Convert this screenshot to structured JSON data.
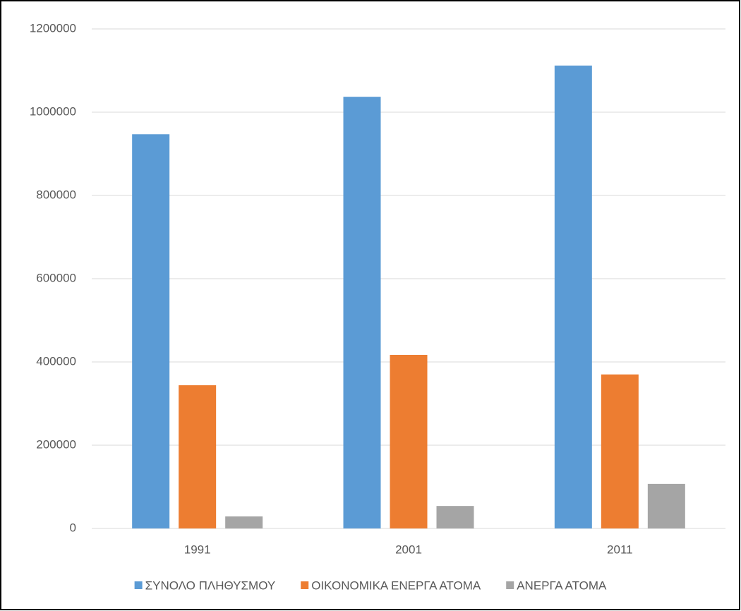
{
  "chart_data": {
    "type": "bar",
    "categories": [
      "1991",
      "2001",
      "2011"
    ],
    "series": [
      {
        "name": "ΣΥΝΟΛΟ ΠΛΗΘΥΣΜΟΥ",
        "color": "#5b9bd5",
        "values": [
          947000,
          1037000,
          1112000
        ]
      },
      {
        "name": "ΟΙΚΟΝΟΜΙΚΑ ΕΝΕΡΓΑ ΑΤΟΜΑ",
        "color": "#ed7d31",
        "values": [
          344000,
          417000,
          370000
        ]
      },
      {
        "name": "ΑΝΕΡΓΑ ΑΤΟΜΑ",
        "color": "#a5a5a5",
        "values": [
          29000,
          54000,
          107000
        ]
      }
    ],
    "ylim": [
      0,
      1200000
    ],
    "yticks": [
      0,
      200000,
      400000,
      600000,
      800000,
      1000000,
      1200000
    ],
    "grid": true,
    "legend": "bottom"
  }
}
